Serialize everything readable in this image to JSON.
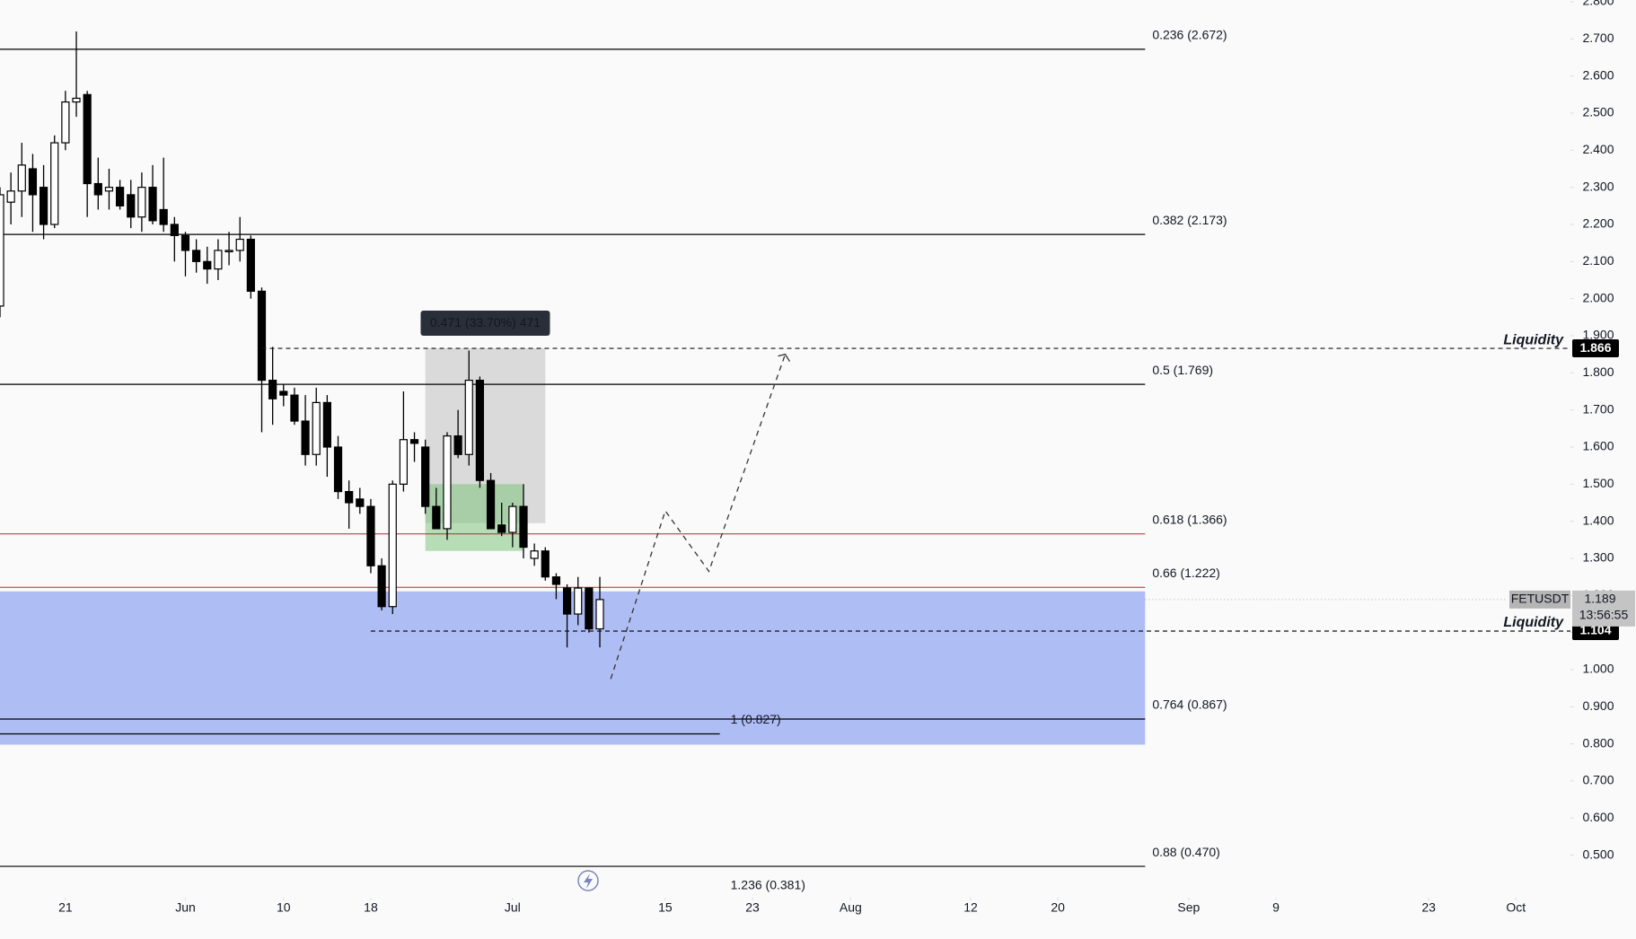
{
  "chart_data": {
    "type": "candlestick",
    "up_color": "#ffffff",
    "down_color": "#000000",
    "open": [
      1.98,
      2.26,
      2.29,
      2.35,
      2.3,
      2.2,
      2.42,
      2.53,
      2.55,
      2.31,
      2.29,
      2.3,
      2.28,
      2.22,
      2.3,
      2.24,
      2.2,
      2.17,
      2.13,
      2.1,
      2.08,
      2.13,
      2.13,
      2.16,
      2.02,
      1.78,
      1.75,
      1.74,
      1.67,
      1.58,
      1.72,
      1.6,
      1.48,
      1.46,
      1.44,
      1.28,
      1.17,
      1.5,
      1.62,
      1.6,
      1.44,
      1.38,
      1.63,
      1.58,
      1.78,
      1.51,
      1.39,
      1.37,
      1.44,
      1.3,
      1.32,
      1.25,
      1.22,
      1.15,
      1.22,
      1.11
    ],
    "high": [
      2.3,
      2.34,
      2.42,
      2.39,
      2.36,
      2.44,
      2.56,
      2.72,
      2.56,
      2.38,
      2.35,
      2.32,
      2.32,
      2.34,
      2.36,
      2.38,
      2.22,
      2.18,
      2.16,
      2.14,
      2.16,
      2.18,
      2.22,
      2.17,
      2.03,
      1.87,
      1.77,
      1.76,
      1.74,
      1.76,
      1.74,
      1.63,
      1.51,
      1.49,
      1.46,
      1.3,
      1.51,
      1.75,
      1.64,
      1.62,
      1.49,
      1.64,
      1.7,
      1.86,
      1.79,
      1.53,
      1.45,
      1.45,
      1.5,
      1.34,
      1.33,
      1.26,
      1.23,
      1.25,
      1.22,
      1.25
    ],
    "low": [
      1.95,
      2.2,
      2.22,
      2.18,
      2.16,
      2.19,
      2.4,
      2.49,
      2.22,
      2.24,
      2.24,
      2.24,
      2.19,
      2.18,
      2.2,
      2.18,
      2.1,
      2.06,
      2.07,
      2.04,
      2.05,
      2.09,
      2.1,
      2.0,
      1.64,
      1.66,
      1.71,
      1.66,
      1.55,
      1.55,
      1.52,
      1.46,
      1.38,
      1.42,
      1.26,
      1.16,
      1.15,
      1.48,
      1.56,
      1.42,
      1.38,
      1.35,
      1.57,
      1.55,
      1.49,
      1.38,
      1.36,
      1.33,
      1.3,
      1.28,
      1.24,
      1.19,
      1.06,
      1.12,
      1.1,
      1.06
    ],
    "close": [
      2.28,
      2.29,
      2.36,
      2.28,
      2.2,
      2.42,
      2.53,
      2.54,
      2.31,
      2.28,
      2.3,
      2.25,
      2.22,
      2.3,
      2.21,
      2.2,
      2.17,
      2.13,
      2.1,
      2.08,
      2.13,
      2.13,
      2.16,
      2.02,
      1.78,
      1.73,
      1.74,
      1.67,
      1.58,
      1.72,
      1.6,
      1.48,
      1.45,
      1.44,
      1.28,
      1.17,
      1.5,
      1.62,
      1.61,
      1.44,
      1.38,
      1.63,
      1.58,
      1.78,
      1.51,
      1.38,
      1.37,
      1.44,
      1.33,
      1.32,
      1.25,
      1.23,
      1.15,
      1.22,
      1.11,
      1.189
    ],
    "xlim": [
      0,
      144
    ],
    "xticks": [
      {
        "value": 6,
        "label": "21"
      },
      {
        "value": 17,
        "label": "Jun"
      },
      {
        "value": 26,
        "label": "10"
      },
      {
        "value": 34,
        "label": "18"
      },
      {
        "value": 47,
        "label": "Jul"
      },
      {
        "value": 61,
        "label": "15"
      },
      {
        "value": 69,
        "label": "23"
      },
      {
        "value": 78,
        "label": "Aug"
      },
      {
        "value": 89,
        "label": "12"
      },
      {
        "value": 97,
        "label": "20"
      },
      {
        "value": 109,
        "label": "Sep"
      },
      {
        "value": 117,
        "label": "9"
      },
      {
        "value": 131,
        "label": "23"
      },
      {
        "value": 139,
        "label": "Oct"
      }
    ],
    "ylim": [
      0.4,
      2.8
    ],
    "yticks": [
      {
        "value": 0.5,
        "label": "0.500"
      },
      {
        "value": 0.6,
        "label": "0.600"
      },
      {
        "value": 0.7,
        "label": "0.700"
      },
      {
        "value": 0.8,
        "label": "0.800"
      },
      {
        "value": 0.9,
        "label": "0.900"
      },
      {
        "value": 1.0,
        "label": "1.000"
      },
      {
        "value": 1.1,
        "label": "1.100"
      },
      {
        "value": 1.2,
        "label": "1.200"
      },
      {
        "value": 1.3,
        "label": "1.300"
      },
      {
        "value": 1.4,
        "label": "1.400"
      },
      {
        "value": 1.5,
        "label": "1.500"
      },
      {
        "value": 1.6,
        "label": "1.600"
      },
      {
        "value": 1.7,
        "label": "1.700"
      },
      {
        "value": 1.8,
        "label": "1.800"
      },
      {
        "value": 1.9,
        "label": "1.900"
      },
      {
        "value": 2.0,
        "label": "2.000"
      },
      {
        "value": 2.1,
        "label": "2.100"
      },
      {
        "value": 2.2,
        "label": "2.200"
      },
      {
        "value": 2.3,
        "label": "2.300"
      },
      {
        "value": 2.4,
        "label": "2.400"
      },
      {
        "value": 2.5,
        "label": "2.500"
      },
      {
        "value": 2.6,
        "label": "2.600"
      },
      {
        "value": 2.7,
        "label": "2.700"
      },
      {
        "value": 2.8,
        "label": "2.800"
      }
    ],
    "fib": [
      {
        "label": "0.236 (2.672)",
        "price": 2.672,
        "color": "#000000"
      },
      {
        "label": "0.382 (2.173)",
        "price": 2.173,
        "color": "#000000"
      },
      {
        "label": "0.5 (1.769)",
        "price": 1.769,
        "color": "#000000"
      },
      {
        "label": "0.618 (1.366)",
        "price": 1.366,
        "color": "#b22833"
      },
      {
        "label": "0.66 (1.222)",
        "price": 1.222,
        "color": "#b22833"
      },
      {
        "label": "0.764 (0.867)",
        "price": 0.867,
        "color": "#000000"
      },
      {
        "label": "1 (0.827)",
        "price": 0.827,
        "color": "#000000"
      },
      {
        "label": "0.88 (0.470)",
        "price": 0.47,
        "color": "#000000"
      },
      {
        "label": "1.236 (0.381)",
        "price": 0.381,
        "color": "#000000"
      }
    ],
    "zone": {
      "top": 1.211,
      "bottom": 0.798,
      "color": "#afbdf5"
    },
    "measure": {
      "label": "0.471 (33.70%) 471",
      "top": 1.866,
      "bottom": 1.395,
      "from": 39,
      "to": 50,
      "entry_top": 1.5,
      "entry_bottom": 1.32,
      "entry_to": 48
    },
    "liquidity": [
      {
        "label": "Liquidity",
        "price": 1.866,
        "from": 24
      },
      {
        "label": "Liquidity",
        "price": 1.104,
        "from": 34
      }
    ],
    "last_price": {
      "symbol": "FETUSDT",
      "price": 1.189,
      "countdown": "13:56:55"
    },
    "projection": {
      "x": [
        56,
        61,
        65,
        72
      ],
      "y": [
        0.975,
        1.428,
        1.265,
        1.85
      ]
    }
  }
}
